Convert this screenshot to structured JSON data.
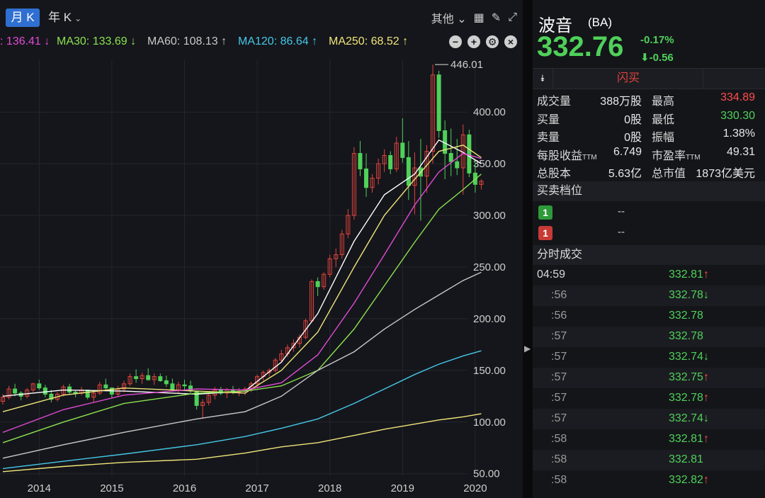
{
  "toolbar": {
    "tab_month": "月 K",
    "tab_year": "年 K",
    "other": "其他"
  },
  "ma": [
    {
      "label": ": 136.41 ↓",
      "color": "#e04bd6"
    },
    {
      "label": "MA30: 133.69 ↓",
      "color": "#8be24f"
    },
    {
      "label": "MA60: 108.13 ↑",
      "color": "#c9c9c9"
    },
    {
      "label": "MA120: 86.64 ↑",
      "color": "#45c8e8"
    },
    {
      "label": "MA250: 68.52 ↑",
      "color": "#f0e47a"
    }
  ],
  "chart_data": {
    "type": "candlestick",
    "title": "",
    "x_ticks": [
      "2014",
      "2015",
      "2016",
      "2017",
      "2018",
      "2019",
      "2020"
    ],
    "y_ticks": [
      "50.00",
      "100.00",
      "150.00",
      "200.00",
      "250.00",
      "300.00",
      "350.00",
      "400.00"
    ],
    "ylim": [
      45,
      455
    ],
    "max_annotation": "446.01",
    "candles": [
      [
        120,
        127,
        117,
        124
      ],
      [
        124,
        135,
        122,
        132
      ],
      [
        132,
        137,
        125,
        128
      ],
      [
        128,
        130,
        121,
        125
      ],
      [
        125,
        133,
        123,
        131
      ],
      [
        131,
        138,
        129,
        137
      ],
      [
        137,
        141,
        131,
        133
      ],
      [
        133,
        136,
        124,
        127
      ],
      [
        127,
        131,
        119,
        122
      ],
      [
        122,
        129,
        120,
        127
      ],
      [
        127,
        136,
        125,
        134
      ],
      [
        134,
        137,
        127,
        129
      ],
      [
        129,
        131,
        124,
        128
      ],
      [
        128,
        134,
        126,
        131
      ],
      [
        131,
        130,
        122,
        124
      ],
      [
        124,
        130,
        119,
        128
      ],
      [
        128,
        139,
        126,
        136
      ],
      [
        136,
        142,
        131,
        133
      ],
      [
        133,
        131,
        123,
        127
      ],
      [
        127,
        135,
        125,
        132
      ],
      [
        132,
        140,
        129,
        137
      ],
      [
        137,
        147,
        135,
        144
      ],
      [
        144,
        151,
        138,
        142
      ],
      [
        142,
        148,
        137,
        145
      ],
      [
        145,
        152,
        140,
        141
      ],
      [
        141,
        147,
        136,
        144
      ],
      [
        144,
        147,
        139,
        140
      ],
      [
        140,
        145,
        134,
        137
      ],
      [
        137,
        142,
        130,
        131
      ],
      [
        131,
        139,
        128,
        136
      ],
      [
        136,
        141,
        131,
        135
      ],
      [
        135,
        140,
        128,
        130
      ],
      [
        130,
        128,
        112,
        116
      ],
      [
        116,
        122,
        103,
        119
      ],
      [
        119,
        128,
        116,
        126
      ],
      [
        126,
        134,
        122,
        131
      ],
      [
        131,
        134,
        126,
        128
      ],
      [
        128,
        133,
        123,
        131
      ],
      [
        131,
        135,
        127,
        129
      ],
      [
        129,
        133,
        125,
        130
      ],
      [
        130,
        134,
        126,
        132
      ],
      [
        132,
        139,
        129,
        137
      ],
      [
        137,
        146,
        133,
        144
      ],
      [
        144,
        150,
        140,
        148
      ],
      [
        148,
        152,
        144,
        150
      ],
      [
        150,
        162,
        148,
        160
      ],
      [
        160,
        170,
        157,
        166
      ],
      [
        166,
        175,
        163,
        172
      ],
      [
        172,
        180,
        168,
        176
      ],
      [
        176,
        185,
        172,
        182
      ],
      [
        182,
        200,
        180,
        198
      ],
      [
        198,
        238,
        196,
        236
      ],
      [
        236,
        240,
        222,
        231
      ],
      [
        231,
        245,
        228,
        243
      ],
      [
        243,
        262,
        240,
        258
      ],
      [
        258,
        268,
        250,
        262
      ],
      [
        262,
        286,
        258,
        282
      ],
      [
        282,
        306,
        278,
        300
      ],
      [
        300,
        366,
        296,
        360
      ],
      [
        360,
        372,
        338,
        345
      ],
      [
        345,
        360,
        318,
        327
      ],
      [
        327,
        340,
        322,
        336
      ],
      [
        336,
        355,
        330,
        350
      ],
      [
        350,
        364,
        342,
        358
      ],
      [
        358,
        362,
        340,
        345
      ],
      [
        345,
        376,
        342,
        370
      ],
      [
        370,
        394,
        351,
        356
      ],
      [
        356,
        372,
        315,
        329
      ],
      [
        329,
        361,
        301,
        346
      ],
      [
        346,
        374,
        295,
        338
      ],
      [
        338,
        368,
        322,
        362
      ],
      [
        362,
        446,
        350,
        436
      ],
      [
        436,
        440,
        375,
        382
      ],
      [
        382,
        392,
        335,
        360
      ],
      [
        360,
        384,
        338,
        352
      ],
      [
        352,
        374,
        339,
        346
      ],
      [
        346,
        388,
        320,
        378
      ],
      [
        378,
        383,
        337,
        341
      ],
      [
        341,
        352,
        322,
        330
      ],
      [
        330,
        335,
        325,
        333
      ]
    ],
    "ma_lines": {
      "ma5": [
        [
          0,
          125
        ],
        [
          10,
          131
        ],
        [
          20,
          130
        ],
        [
          32,
          127
        ],
        [
          40,
          130
        ],
        [
          46,
          158
        ],
        [
          52,
          205
        ],
        [
          58,
          275
        ],
        [
          63,
          320
        ],
        [
          68,
          340
        ],
        [
          72,
          373
        ],
        [
          76,
          361
        ],
        [
          79,
          350
        ]
      ],
      "ma10": [
        [
          0,
          110
        ],
        [
          10,
          126
        ],
        [
          20,
          133
        ],
        [
          32,
          130
        ],
        [
          40,
          128
        ],
        [
          46,
          150
        ],
        [
          52,
          187
        ],
        [
          58,
          250
        ],
        [
          63,
          300
        ],
        [
          68,
          335
        ],
        [
          72,
          362
        ],
        [
          76,
          368
        ],
        [
          79,
          356
        ]
      ],
      "ma20": [
        [
          0,
          90
        ],
        [
          10,
          112
        ],
        [
          20,
          126
        ],
        [
          32,
          132
        ],
        [
          40,
          131
        ],
        [
          46,
          138
        ],
        [
          52,
          165
        ],
        [
          58,
          215
        ],
        [
          63,
          262
        ],
        [
          68,
          310
        ],
        [
          72,
          342
        ],
        [
          76,
          360
        ],
        [
          79,
          355
        ]
      ],
      "ma30": [
        [
          0,
          80
        ],
        [
          10,
          100
        ],
        [
          20,
          118
        ],
        [
          32,
          128
        ],
        [
          40,
          130
        ],
        [
          46,
          135
        ],
        [
          52,
          150
        ],
        [
          58,
          190
        ],
        [
          63,
          232
        ],
        [
          68,
          274
        ],
        [
          72,
          306
        ],
        [
          76,
          325
        ],
        [
          79,
          340
        ]
      ],
      "ma60": [
        [
          0,
          65
        ],
        [
          10,
          78
        ],
        [
          20,
          90
        ],
        [
          32,
          103
        ],
        [
          40,
          110
        ],
        [
          46,
          125
        ],
        [
          52,
          150
        ],
        [
          58,
          168
        ],
        [
          63,
          190
        ],
        [
          68,
          209
        ],
        [
          72,
          223
        ],
        [
          76,
          237
        ],
        [
          79,
          245
        ]
      ],
      "ma120": [
        [
          0,
          55
        ],
        [
          10,
          62
        ],
        [
          20,
          69
        ],
        [
          32,
          78
        ],
        [
          40,
          86
        ],
        [
          46,
          94
        ],
        [
          52,
          103
        ],
        [
          58,
          118
        ],
        [
          63,
          132
        ],
        [
          68,
          146
        ],
        [
          72,
          156
        ],
        [
          76,
          164
        ],
        [
          79,
          169
        ]
      ],
      "ma250": [
        [
          0,
          52
        ],
        [
          10,
          57
        ],
        [
          20,
          61
        ],
        [
          32,
          64
        ],
        [
          40,
          70
        ],
        [
          46,
          76
        ],
        [
          52,
          80
        ],
        [
          58,
          87
        ],
        [
          63,
          93
        ],
        [
          68,
          98
        ],
        [
          72,
          102
        ],
        [
          76,
          105
        ],
        [
          79,
          108
        ]
      ]
    }
  },
  "quote": {
    "name": "波音",
    "code": "(BA)",
    "price": "332.76",
    "pct": "-0.17%",
    "chg": "-0.56",
    "flash_trade": "闪买"
  },
  "stats": [
    {
      "l1": "成交量",
      "v1": "388万股",
      "l2": "最高",
      "v2": "334.89",
      "c2": "red"
    },
    {
      "l1": "买量",
      "v1": "0股",
      "l2": "最低",
      "v2": "330.30",
      "c2": "green"
    },
    {
      "l1": "卖量",
      "v1": "0股",
      "l2": "振幅",
      "v2": "1.38%",
      "c2": ""
    },
    {
      "l1": "每股收益",
      "l1ttm": "TTM",
      "v1": "6.749",
      "l2": "市盈率",
      "l2ttm": "TTM",
      "v2": "49.31",
      "c2": ""
    },
    {
      "l1": "总股本",
      "v1": "5.63亿",
      "l2": "总市值",
      "v2": "1873亿美元",
      "c2": ""
    }
  ],
  "order_book": {
    "title": "买卖档位",
    "buy": {
      "level": "1",
      "value": "--"
    },
    "sell": {
      "level": "1",
      "value": "--"
    }
  },
  "ticks_title": "分时成交",
  "ticks": [
    {
      "time": "04:59",
      "price": "332.81",
      "dir": "↑",
      "first": true
    },
    {
      "time": ":56",
      "price": "332.78",
      "dir": "↓"
    },
    {
      "time": ":56",
      "price": "332.78",
      "dir": ""
    },
    {
      "time": ":57",
      "price": "332.78",
      "dir": ""
    },
    {
      "time": ":57",
      "price": "332.74",
      "dir": "↓"
    },
    {
      "time": ":57",
      "price": "332.75",
      "dir": "↑"
    },
    {
      "time": ":57",
      "price": "332.78",
      "dir": "↑"
    },
    {
      "time": ":57",
      "price": "332.74",
      "dir": "↓"
    },
    {
      "time": ":58",
      "price": "332.81",
      "dir": "↑"
    },
    {
      "time": ":58",
      "price": "332.81",
      "dir": ""
    },
    {
      "time": ":58",
      "price": "332.82",
      "dir": "↑"
    }
  ]
}
